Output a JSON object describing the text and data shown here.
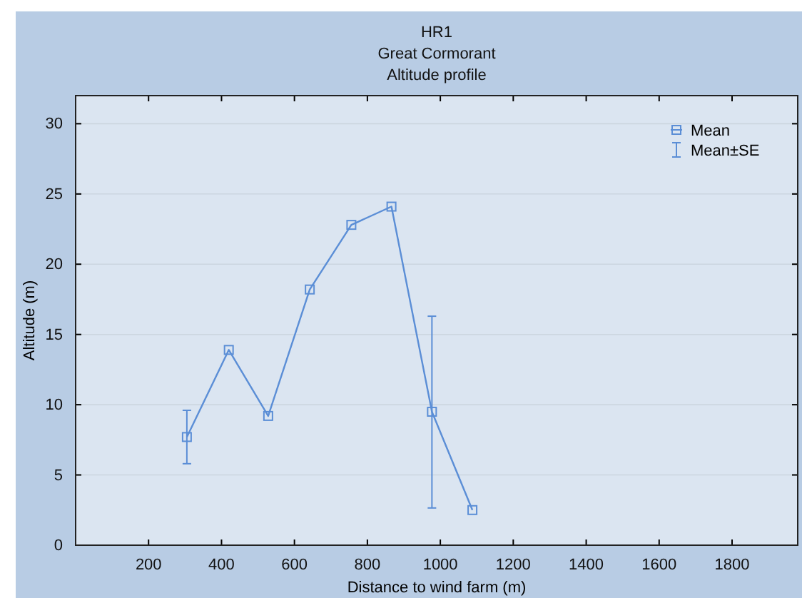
{
  "chart_data": {
    "type": "line",
    "title": "HR1\nGreat Cormorant\nAltitude profile",
    "xlabel": "Distance to wind farm (m)",
    "ylabel": "Altitude (m)",
    "x": [
      305,
      420,
      528,
      642,
      756,
      866,
      977,
      1088
    ],
    "series": [
      {
        "name": "Mean",
        "color": "#5b8ed6",
        "values": [
          7.7,
          13.9,
          9.2,
          18.2,
          22.8,
          24.1,
          9.5,
          2.5
        ],
        "errors": [
          [
            5.8,
            9.6
          ],
          null,
          null,
          null,
          null,
          null,
          [
            2.65,
            16.3
          ],
          null
        ]
      }
    ],
    "annotations": [
      "Mean±SE"
    ],
    "xlim": [
      0,
      1980
    ],
    "xticks": [
      200,
      400,
      600,
      800,
      1000,
      1200,
      1400,
      1600,
      1800
    ],
    "ylim": [
      0,
      32
    ],
    "yticks": [
      0,
      5,
      10,
      15,
      20,
      25,
      30
    ],
    "grid": "y",
    "legend": "top right",
    "marker": "square",
    "line_style": "solid"
  }
}
